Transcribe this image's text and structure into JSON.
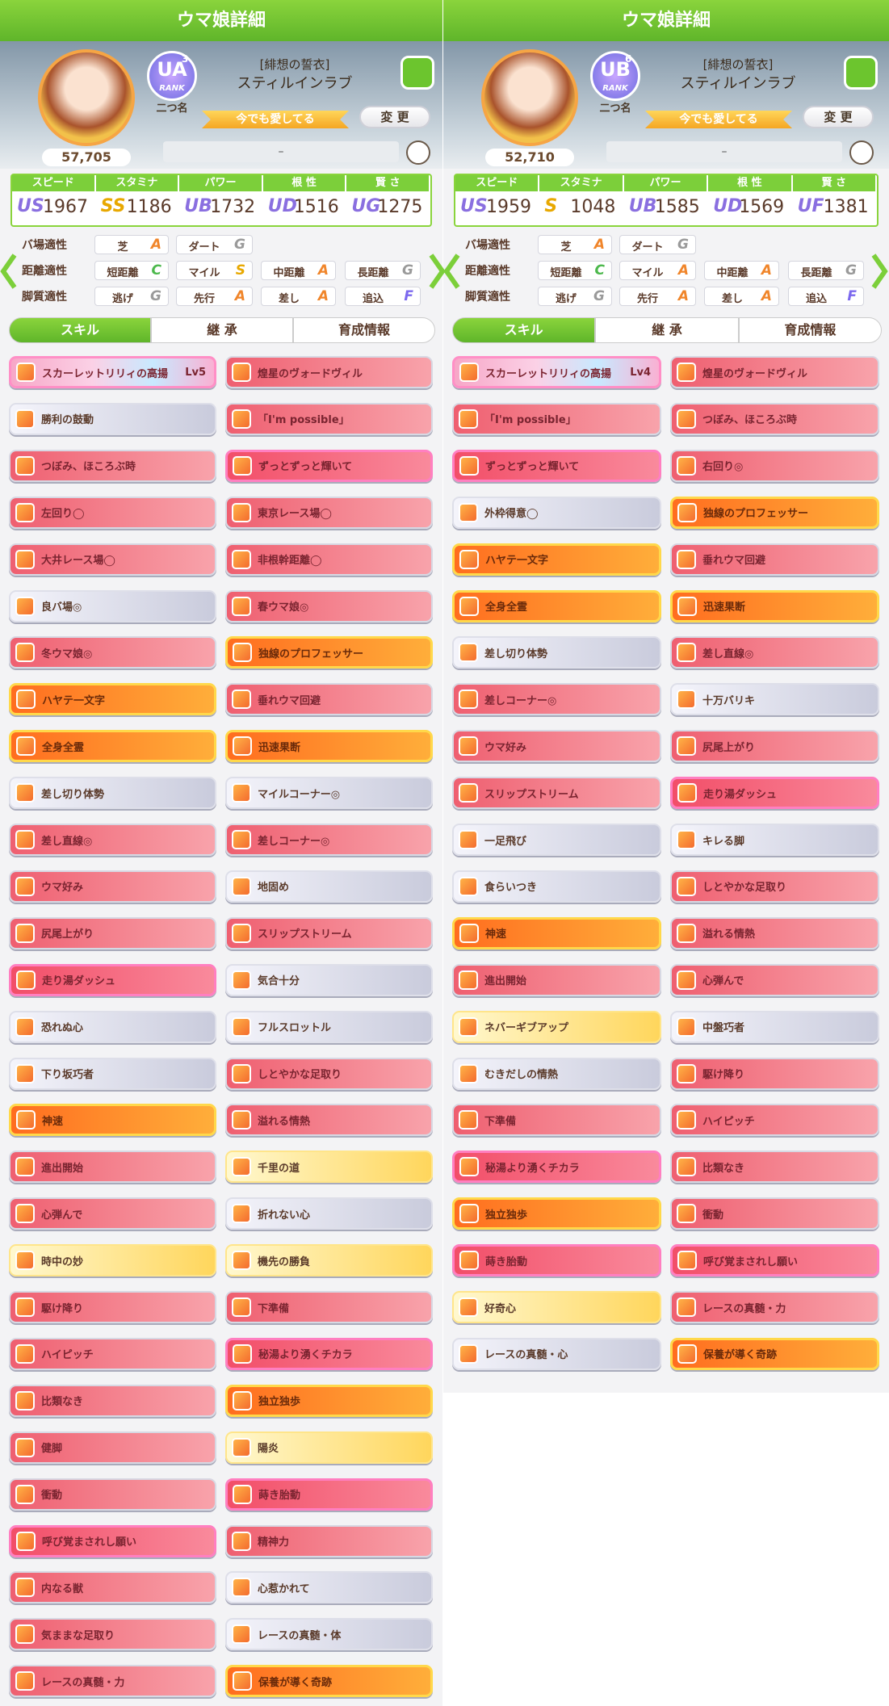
{
  "panels": [
    {
      "header": {
        "title": "ウマ娘詳細"
      },
      "profile": {
        "rank": "UA",
        "rank_num": "3",
        "rank_label": "RANK",
        "points": "57,705",
        "outfit": "[緋想の誓衣]",
        "name": "スティルインラブ",
        "nickname_label": "二つ名",
        "nickname": "今でも愛してる",
        "change": "変 更",
        "comment": "–"
      },
      "stats": [
        {
          "label": "スピード",
          "grade": "US",
          "value": 1967
        },
        {
          "label": "スタミナ",
          "grade": "SS",
          "value": 1186
        },
        {
          "label": "パワー",
          "grade": "UB",
          "value": 1732
        },
        {
          "label": "根 性",
          "grade": "UD",
          "value": 1516
        },
        {
          "label": "賢 さ",
          "grade": "UG",
          "value": 1275
        }
      ],
      "aptitudes": [
        {
          "label": "バ場適性",
          "items": [
            {
              "name": "芝",
              "grade": "A"
            },
            {
              "name": "ダート",
              "grade": "G"
            }
          ]
        },
        {
          "label": "距離適性",
          "items": [
            {
              "name": "短距離",
              "grade": "C"
            },
            {
              "name": "マイル",
              "grade": "S"
            },
            {
              "name": "中距離",
              "grade": "A"
            },
            {
              "name": "長距離",
              "grade": "G"
            }
          ]
        },
        {
          "label": "脚質適性",
          "items": [
            {
              "name": "逃げ",
              "grade": "G"
            },
            {
              "name": "先行",
              "grade": "A"
            },
            {
              "name": "差し",
              "grade": "A"
            },
            {
              "name": "追込",
              "grade": "F"
            }
          ]
        }
      ],
      "tabs": [
        "スキル",
        "継 承",
        "育成情報"
      ],
      "skills": [
        {
          "name": "スカーレットリリィの高揚",
          "level": "Lv5",
          "kind": "unique"
        },
        {
          "name": "煌星のヴォードヴィル",
          "kind": "red"
        },
        {
          "name": "勝利の鼓動",
          "kind": "white"
        },
        {
          "name": "「I'm possible」",
          "kind": "red"
        },
        {
          "name": "つぼみ、ほころぶ時",
          "kind": "red"
        },
        {
          "name": "ずっとずっと輝いて",
          "kind": "pink"
        },
        {
          "name": "左回り◯",
          "kind": "red"
        },
        {
          "name": "東京レース場◯",
          "kind": "red"
        },
        {
          "name": "大井レース場◯",
          "kind": "red"
        },
        {
          "name": "非根幹距離◯",
          "kind": "red"
        },
        {
          "name": "良バ場◎",
          "kind": "white"
        },
        {
          "name": "春ウマ娘◎",
          "kind": "red"
        },
        {
          "name": "冬ウマ娘◎",
          "kind": "red"
        },
        {
          "name": "独線のプロフェッサー",
          "kind": "gold"
        },
        {
          "name": "ハヤテ一文字",
          "kind": "gold"
        },
        {
          "name": "垂れウマ回避",
          "kind": "red"
        },
        {
          "name": "全身全霊",
          "kind": "gold"
        },
        {
          "name": "迅速果断",
          "kind": "gold"
        },
        {
          "name": "差し切り体勢",
          "kind": "white"
        },
        {
          "name": "マイルコーナー◎",
          "kind": "white"
        },
        {
          "name": "差し直線◎",
          "kind": "red"
        },
        {
          "name": "差しコーナー◎",
          "kind": "red"
        },
        {
          "name": "ウマ好み",
          "kind": "red"
        },
        {
          "name": "地固め",
          "kind": "white"
        },
        {
          "name": "尻尾上がり",
          "kind": "red"
        },
        {
          "name": "スリップストリーム",
          "kind": "red"
        },
        {
          "name": "走り湯ダッシュ",
          "kind": "pink"
        },
        {
          "name": "気合十分",
          "kind": "white"
        },
        {
          "name": "恐れぬ心",
          "kind": "white"
        },
        {
          "name": "フルスロットル",
          "kind": "white"
        },
        {
          "name": "下り坂巧者",
          "kind": "white"
        },
        {
          "name": "しとやかな足取り",
          "kind": "red"
        },
        {
          "name": "神速",
          "kind": "gold"
        },
        {
          "name": "溢れる情熱",
          "kind": "red"
        },
        {
          "name": "進出開始",
          "kind": "red"
        },
        {
          "name": "千里の道",
          "kind": "yellow"
        },
        {
          "name": "心弾んで",
          "kind": "red"
        },
        {
          "name": "折れない心",
          "kind": "white"
        },
        {
          "name": "時中の妙",
          "kind": "yellow"
        },
        {
          "name": "機先の勝負",
          "kind": "yellow"
        },
        {
          "name": "駆け降り",
          "kind": "red"
        },
        {
          "name": "下準備",
          "kind": "red"
        },
        {
          "name": "ハイピッチ",
          "kind": "red"
        },
        {
          "name": "秘湯より湧くチカラ",
          "kind": "pink"
        },
        {
          "name": "比類なき",
          "kind": "red"
        },
        {
          "name": "独立独歩",
          "kind": "gold"
        },
        {
          "name": "健脚",
          "kind": "red"
        },
        {
          "name": "陽炎",
          "kind": "yellow"
        },
        {
          "name": "衝動",
          "kind": "red"
        },
        {
          "name": "蒔き胎動",
          "kind": "pink"
        },
        {
          "name": "呼び覚まされし願い",
          "kind": "pink"
        },
        {
          "name": "精神力",
          "kind": "red"
        },
        {
          "name": "内なる獣",
          "kind": "red"
        },
        {
          "name": "心惹かれて",
          "kind": "white"
        },
        {
          "name": "気ままな足取り",
          "kind": "red"
        },
        {
          "name": "レースの真髄・体",
          "kind": "white"
        },
        {
          "name": "レースの真髄・力",
          "kind": "red"
        },
        {
          "name": "保養が導く奇跡",
          "kind": "gold"
        }
      ]
    },
    {
      "header": {
        "title": "ウマ娘詳細"
      },
      "profile": {
        "rank": "UB",
        "rank_num": "6",
        "rank_label": "RANK",
        "points": "52,710",
        "outfit": "[緋想の誓衣]",
        "name": "スティルインラブ",
        "nickname_label": "二つ名",
        "nickname": "今でも愛してる",
        "change": "変 更",
        "comment": "–"
      },
      "stats": [
        {
          "label": "スピード",
          "grade": "US",
          "value": 1959
        },
        {
          "label": "スタミナ",
          "grade": "S",
          "value": 1048
        },
        {
          "label": "パワー",
          "grade": "UB",
          "value": 1585
        },
        {
          "label": "根 性",
          "grade": "UD",
          "value": 1569
        },
        {
          "label": "賢 さ",
          "grade": "UF",
          "value": 1381
        }
      ],
      "aptitudes": [
        {
          "label": "バ場適性",
          "items": [
            {
              "name": "芝",
              "grade": "A"
            },
            {
              "name": "ダート",
              "grade": "G"
            }
          ]
        },
        {
          "label": "距離適性",
          "items": [
            {
              "name": "短距離",
              "grade": "C"
            },
            {
              "name": "マイル",
              "grade": "A"
            },
            {
              "name": "中距離",
              "grade": "A"
            },
            {
              "name": "長距離",
              "grade": "G"
            }
          ]
        },
        {
          "label": "脚質適性",
          "items": [
            {
              "name": "逃げ",
              "grade": "G"
            },
            {
              "name": "先行",
              "grade": "A"
            },
            {
              "name": "差し",
              "grade": "A"
            },
            {
              "name": "追込",
              "grade": "F"
            }
          ]
        }
      ],
      "tabs": [
        "スキル",
        "継 承",
        "育成情報"
      ],
      "skills": [
        {
          "name": "スカーレットリリィの高揚",
          "level": "Lv4",
          "kind": "unique"
        },
        {
          "name": "煌星のヴォードヴィル",
          "kind": "red"
        },
        {
          "name": "「I'm possible」",
          "kind": "red"
        },
        {
          "name": "つぼみ、ほころぶ時",
          "kind": "red"
        },
        {
          "name": "ずっとずっと輝いて",
          "kind": "pink"
        },
        {
          "name": "右回り◎",
          "kind": "red"
        },
        {
          "name": "外枠得意◯",
          "kind": "white"
        },
        {
          "name": "独線のプロフェッサー",
          "kind": "gold"
        },
        {
          "name": "ハヤテ一文字",
          "kind": "gold"
        },
        {
          "name": "垂れウマ回避",
          "kind": "red"
        },
        {
          "name": "全身全霊",
          "kind": "gold"
        },
        {
          "name": "迅速果断",
          "kind": "gold"
        },
        {
          "name": "差し切り体勢",
          "kind": "white"
        },
        {
          "name": "差し直線◎",
          "kind": "red"
        },
        {
          "name": "差しコーナー◎",
          "kind": "red"
        },
        {
          "name": "十万バリキ",
          "kind": "white"
        },
        {
          "name": "ウマ好み",
          "kind": "red"
        },
        {
          "name": "尻尾上がり",
          "kind": "red"
        },
        {
          "name": "スリップストリーム",
          "kind": "red"
        },
        {
          "name": "走り湯ダッシュ",
          "kind": "pink"
        },
        {
          "name": "一足飛び",
          "kind": "white"
        },
        {
          "name": "キレる脚",
          "kind": "white"
        },
        {
          "name": "食らいつき",
          "kind": "white"
        },
        {
          "name": "しとやかな足取り",
          "kind": "red"
        },
        {
          "name": "神速",
          "kind": "gold"
        },
        {
          "name": "溢れる情熱",
          "kind": "red"
        },
        {
          "name": "進出開始",
          "kind": "red"
        },
        {
          "name": "心弾んで",
          "kind": "red"
        },
        {
          "name": "ネバーギブアップ",
          "kind": "yellow"
        },
        {
          "name": "中盤巧者",
          "kind": "white"
        },
        {
          "name": "むきだしの情熱",
          "kind": "white"
        },
        {
          "name": "駆け降り",
          "kind": "red"
        },
        {
          "name": "下準備",
          "kind": "red"
        },
        {
          "name": "ハイピッチ",
          "kind": "red"
        },
        {
          "name": "秘湯より湧くチカラ",
          "kind": "pink"
        },
        {
          "name": "比類なき",
          "kind": "red"
        },
        {
          "name": "独立独歩",
          "kind": "gold"
        },
        {
          "name": "衝動",
          "kind": "red"
        },
        {
          "name": "蒔き胎動",
          "kind": "pink"
        },
        {
          "name": "呼び覚まされし願い",
          "kind": "pink"
        },
        {
          "name": "好奇心",
          "kind": "yellow"
        },
        {
          "name": "レースの真髄・力",
          "kind": "red"
        },
        {
          "name": "レースの真髄・心",
          "kind": "white"
        },
        {
          "name": "保養が導く奇跡",
          "kind": "gold"
        }
      ]
    }
  ]
}
